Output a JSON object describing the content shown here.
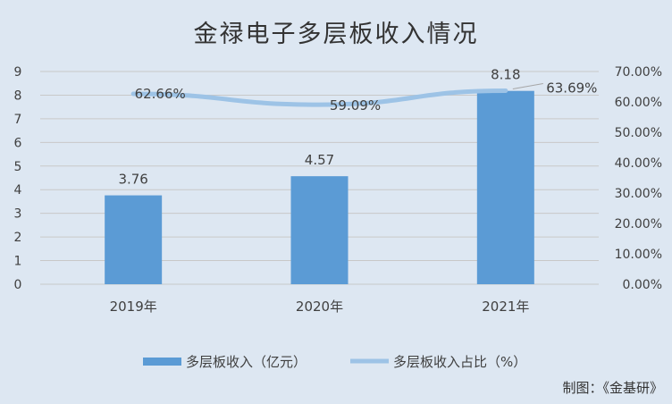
{
  "chart_data": {
    "type": "bar",
    "title": "金禄电子多层板收入情况",
    "categories": [
      "2019年",
      "2020年",
      "2021年"
    ],
    "ylim": [
      0,
      9
    ],
    "y_ticks": [
      "0",
      "1",
      "2",
      "3",
      "4",
      "5",
      "6",
      "7",
      "8",
      "9"
    ],
    "y2lim": [
      0,
      0.7
    ],
    "y2_ticks": [
      "0.00%",
      "10.00%",
      "20.00%",
      "30.00%",
      "40.00%",
      "50.00%",
      "60.00%",
      "70.00%"
    ],
    "grid": true,
    "legend_position": "bottom",
    "series": [
      {
        "name": "多层板收入（亿元）",
        "type": "bar",
        "axis": "left",
        "values": [
          3.76,
          4.57,
          8.18
        ],
        "labels": [
          "3.76",
          "4.57",
          "8.18"
        ],
        "color": "#5b9bd5"
      },
      {
        "name": "多层板收入占比（%）",
        "type": "line",
        "axis": "right",
        "values": [
          0.6266,
          0.5909,
          0.6369
        ],
        "labels": [
          "62.66%",
          "59.09%",
          "63.69%"
        ],
        "color": "#9dc3e6"
      }
    ]
  },
  "source": "制图：《金基研》",
  "colors": {
    "background": "#dde7f2",
    "gridline": "#c8c8c8",
    "text": "#404040"
  }
}
